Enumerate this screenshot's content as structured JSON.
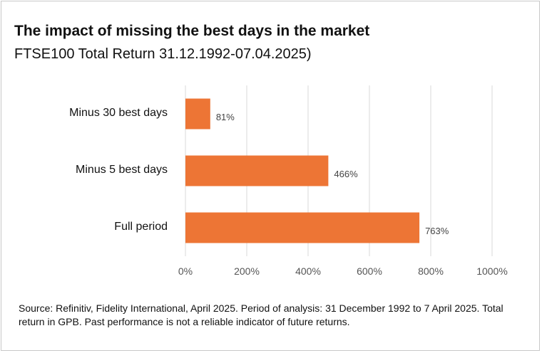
{
  "title": "The impact of missing the best days in the market",
  "subtitle": "FTSE100 Total Return 31.12.1992-07.04.2025)",
  "source": "Source: Refinitiv, Fidelity International, April 2025. Period of analysis: 31 December 1992 to 7 April 2025. Total return in GPB. Past performance is not a reliable indicator of future returns.",
  "chart_data": {
    "type": "bar",
    "orientation": "horizontal",
    "categories": [
      "Minus 30 best days",
      "Minus 5 best days",
      "Full period"
    ],
    "values": [
      81,
      466,
      763
    ],
    "data_labels": [
      "81%",
      "466%",
      "763%"
    ],
    "xlim": [
      0,
      1000
    ],
    "x_ticks": [
      0,
      200,
      400,
      600,
      800,
      1000
    ],
    "x_tick_labels": [
      "0%",
      "200%",
      "400%",
      "600%",
      "800%",
      "1000%"
    ],
    "grid": true,
    "legend": "none",
    "bar_color": "#ED7535",
    "grid_color": "#d9d9d9"
  }
}
